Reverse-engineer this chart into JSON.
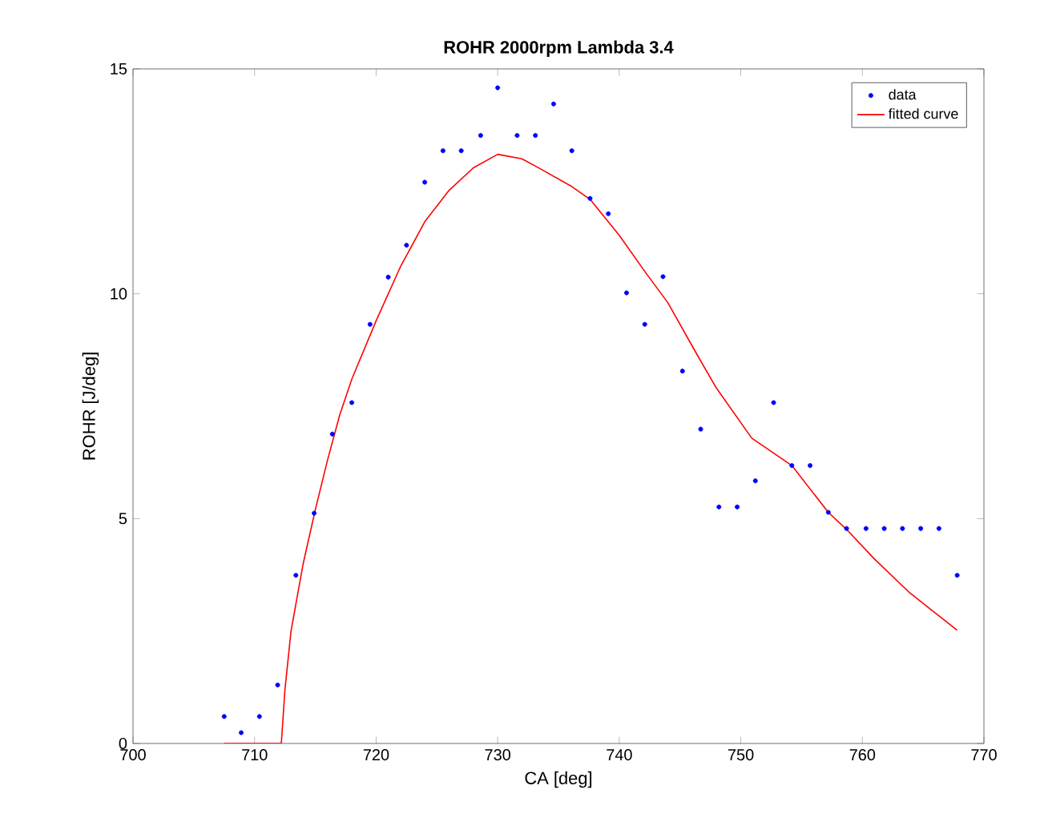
{
  "chart_data": {
    "type": "scatter",
    "title": "ROHR 2000rpm Lambda 3.4",
    "xlabel": "CA [deg]",
    "ylabel": "ROHR [J/deg]",
    "xlim": [
      700,
      770
    ],
    "xticks": [
      700,
      710,
      720,
      730,
      740,
      750,
      760,
      770
    ],
    "ylim": [
      0,
      15
    ],
    "yticks": [
      0,
      5,
      10,
      15
    ],
    "legend": "top right",
    "grid": false,
    "series": [
      {
        "name": "data",
        "marker": "circle",
        "color": "#0000ff",
        "x": [
          707.5,
          708.9,
          710.4,
          711.9,
          713.4,
          714.9,
          716.4,
          718.0,
          719.5,
          721.0,
          722.5,
          724.0,
          725.5,
          727.0,
          728.6,
          730.0,
          731.6,
          733.1,
          734.6,
          736.1,
          737.6,
          739.1,
          740.6,
          742.1,
          743.6,
          745.2,
          746.7,
          748.2,
          749.7,
          751.2,
          752.7,
          754.2,
          755.7,
          757.2,
          758.7,
          760.3,
          761.8,
          763.3,
          764.8,
          766.3,
          767.8
        ],
        "values": [
          0.6,
          0.24,
          0.6,
          1.3,
          3.74,
          5.12,
          6.88,
          7.58,
          9.32,
          10.37,
          11.08,
          12.48,
          13.18,
          13.18,
          13.52,
          14.58,
          13.52,
          13.52,
          14.22,
          13.18,
          12.12,
          11.78,
          10.02,
          9.32,
          10.38,
          8.28,
          6.99,
          5.26,
          5.26,
          5.84,
          7.58,
          6.18,
          6.18,
          5.14,
          4.78,
          4.78,
          4.78,
          4.78,
          4.78,
          4.78,
          3.74
        ]
      },
      {
        "name": "fitted curve",
        "type": "line",
        "marker": "none",
        "line_style": "solid",
        "color": "#ff0000",
        "x": [
          707.5,
          712.2,
          712.5,
          713,
          714,
          715,
          716,
          717,
          718,
          720,
          722,
          724,
          726,
          728,
          730,
          732,
          733.5,
          736,
          737.6,
          740,
          742.2,
          744,
          746.5,
          748,
          750.9,
          754.2,
          757.2,
          758.7,
          761,
          763.9,
          766,
          767.8
        ],
        "values": [
          0,
          0,
          1.2,
          2.5,
          4.0,
          5.2,
          6.3,
          7.3,
          8.1,
          9.4,
          10.6,
          11.6,
          12.3,
          12.8,
          13.1,
          13.0,
          12.78,
          12.4,
          12.1,
          11.3,
          10.46,
          9.8,
          8.6,
          7.9,
          6.79,
          6.18,
          5.14,
          4.76,
          4.1,
          3.35,
          2.9,
          2.52
        ]
      }
    ]
  }
}
